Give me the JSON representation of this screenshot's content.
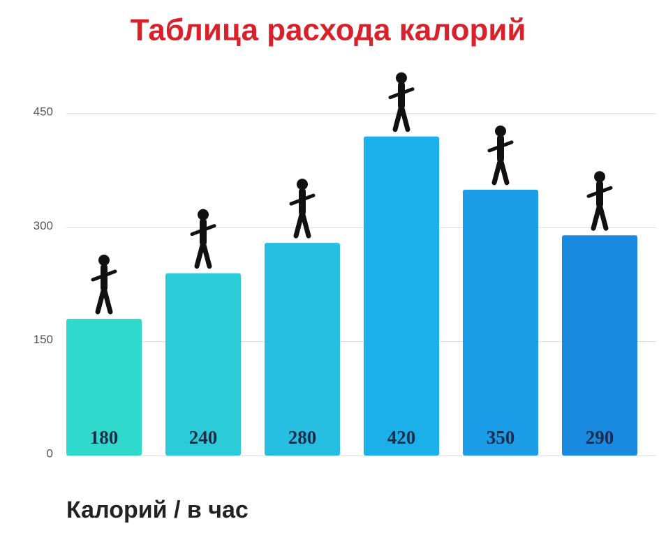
{
  "chart_data": {
    "type": "bar",
    "title": "Таблица расхода калорий",
    "x_label": "Калорий / в час",
    "categories": [
      null,
      null,
      null,
      null,
      null,
      null
    ],
    "values": [
      180,
      240,
      280,
      420,
      350,
      290
    ],
    "colors": [
      "#2fd9cb",
      "#2ccbd8",
      "#27bfe1",
      "#1cb0ea",
      "#1b9ee7",
      "#1a89e0"
    ],
    "ylim": [
      0,
      450
    ],
    "yticks": [
      0,
      150,
      300,
      450
    ],
    "grid": true
  }
}
